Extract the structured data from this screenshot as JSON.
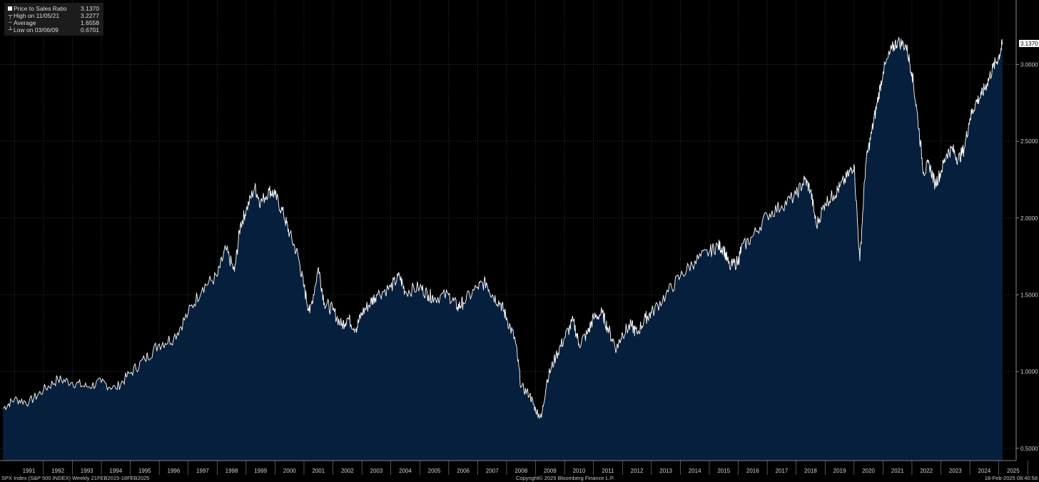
{
  "legend": {
    "items": [
      {
        "mark": "swatch",
        "label": "Price to Sales Ratio",
        "value": "3.1370"
      },
      {
        "mark": "high",
        "label": "High on 11/05/21",
        "value": "3.2277"
      },
      {
        "mark": "avg",
        "label": "Average",
        "value": "1.6558"
      },
      {
        "mark": "low",
        "label": "Low on 03/06/09",
        "value": "0.6701"
      }
    ]
  },
  "footer": {
    "left": "SPX Index (S&P 500 INDEX)  Weekly 21FEB2015-18FEB2025",
    "center": "Copyright© 2025 Bloomberg Finance L.P.",
    "right": "18-Feb-2025 08:40:58"
  },
  "colors": {
    "background": "#000000",
    "area_fill": "#061f3c",
    "line": "#ffffff",
    "grid": "#555555",
    "last_value_tag": "#ffffff"
  },
  "chart_data": {
    "type": "area",
    "series": [
      {
        "name": "Price to Sales Ratio",
        "x": [
          1990.6,
          1991.0,
          1991.5,
          1992.0,
          1992.5,
          1993.0,
          1993.5,
          1994.0,
          1994.5,
          1995.0,
          1995.5,
          1996.0,
          1996.5,
          1997.0,
          1997.5,
          1998.0,
          1998.3,
          1998.6,
          1998.8,
          1999.0,
          1999.3,
          1999.5,
          1999.8,
          2000.0,
          2000.3,
          2000.5,
          2000.8,
          2001.0,
          2001.2,
          2001.5,
          2001.7,
          2002.0,
          2002.3,
          2002.5,
          2002.8,
          2003.0,
          2003.3,
          2003.5,
          2004.0,
          2004.3,
          2004.5,
          2005.0,
          2005.3,
          2005.5,
          2006.0,
          2006.3,
          2006.5,
          2007.0,
          2007.3,
          2007.5,
          2007.8,
          2008.0,
          2008.3,
          2008.5,
          2008.8,
          2009.0,
          2009.2,
          2009.4,
          2009.7,
          2010.0,
          2010.3,
          2010.5,
          2010.8,
          2011.0,
          2011.3,
          2011.5,
          2011.8,
          2012.0,
          2012.3,
          2012.5,
          2012.8,
          2013.0,
          2013.5,
          2014.0,
          2014.5,
          2015.0,
          2015.3,
          2015.5,
          2015.7,
          2016.0,
          2016.1,
          2016.5,
          2017.0,
          2017.5,
          2018.0,
          2018.3,
          2018.5,
          2018.7,
          2019.0,
          2019.3,
          2019.5,
          2019.8,
          2020.0,
          2020.2,
          2020.4,
          2020.6,
          2020.8,
          2021.0,
          2021.3,
          2021.5,
          2021.8,
          2022.0,
          2022.2,
          2022.4,
          2022.6,
          2022.8,
          2023.0,
          2023.2,
          2023.4,
          2023.6,
          2023.8,
          2024.0,
          2024.2,
          2024.4,
          2024.6,
          2024.8,
          2025.0,
          2025.13
        ],
        "y": [
          0.76,
          0.82,
          0.8,
          0.88,
          0.95,
          0.93,
          0.9,
          0.93,
          0.89,
          0.99,
          1.08,
          1.18,
          1.22,
          1.38,
          1.55,
          1.62,
          1.8,
          1.65,
          1.95,
          2.05,
          2.2,
          2.1,
          2.18,
          2.15,
          2.02,
          1.9,
          1.75,
          1.55,
          1.38,
          1.68,
          1.45,
          1.4,
          1.3,
          1.35,
          1.28,
          1.38,
          1.45,
          1.5,
          1.55,
          1.62,
          1.52,
          1.55,
          1.5,
          1.48,
          1.5,
          1.42,
          1.45,
          1.55,
          1.58,
          1.5,
          1.44,
          1.35,
          1.2,
          0.9,
          0.85,
          0.75,
          0.7,
          0.95,
          1.1,
          1.22,
          1.33,
          1.18,
          1.25,
          1.35,
          1.38,
          1.28,
          1.15,
          1.25,
          1.3,
          1.25,
          1.35,
          1.38,
          1.5,
          1.62,
          1.72,
          1.78,
          1.82,
          1.8,
          1.68,
          1.72,
          1.8,
          1.88,
          2.02,
          2.08,
          2.15,
          2.25,
          2.18,
          1.95,
          2.1,
          2.15,
          2.2,
          2.28,
          2.35,
          1.72,
          2.35,
          2.55,
          2.75,
          2.95,
          3.1,
          3.15,
          3.12,
          2.95,
          2.65,
          2.3,
          2.35,
          2.22,
          2.3,
          2.42,
          2.45,
          2.38,
          2.45,
          2.65,
          2.75,
          2.8,
          2.88,
          2.98,
          3.05,
          3.137
        ],
        "last_value": 3.137
      }
    ],
    "high": {
      "date": "11/05/21",
      "value": 3.2277
    },
    "low": {
      "date": "03/06/09",
      "value": 0.6701
    },
    "average": 1.6558,
    "x_tick_labels": [
      "1991",
      "1992",
      "1993",
      "1994",
      "1995",
      "1996",
      "1997",
      "1998",
      "1999",
      "2000",
      "2001",
      "2002",
      "2003",
      "2004",
      "2005",
      "2006",
      "2007",
      "2008",
      "2009",
      "2010",
      "2011",
      "2012",
      "2013",
      "2014",
      "2015",
      "2016",
      "2017",
      "2018",
      "2019",
      "2020",
      "2021",
      "2022",
      "2023",
      "2024",
      "2025"
    ],
    "y_ticks": [
      0.5,
      1.0,
      1.5,
      2.0,
      2.5,
      3.0
    ],
    "y_tick_labels": [
      "0.5000",
      "1.0000",
      "1.5000",
      "2.0000",
      "2.5000",
      "3.0000"
    ],
    "last_value_label": "3.1370",
    "xlim": [
      1990.5,
      2025.6
    ],
    "ylim": [
      0.42,
      3.42
    ],
    "grid": true,
    "legend_position": "top-left"
  }
}
